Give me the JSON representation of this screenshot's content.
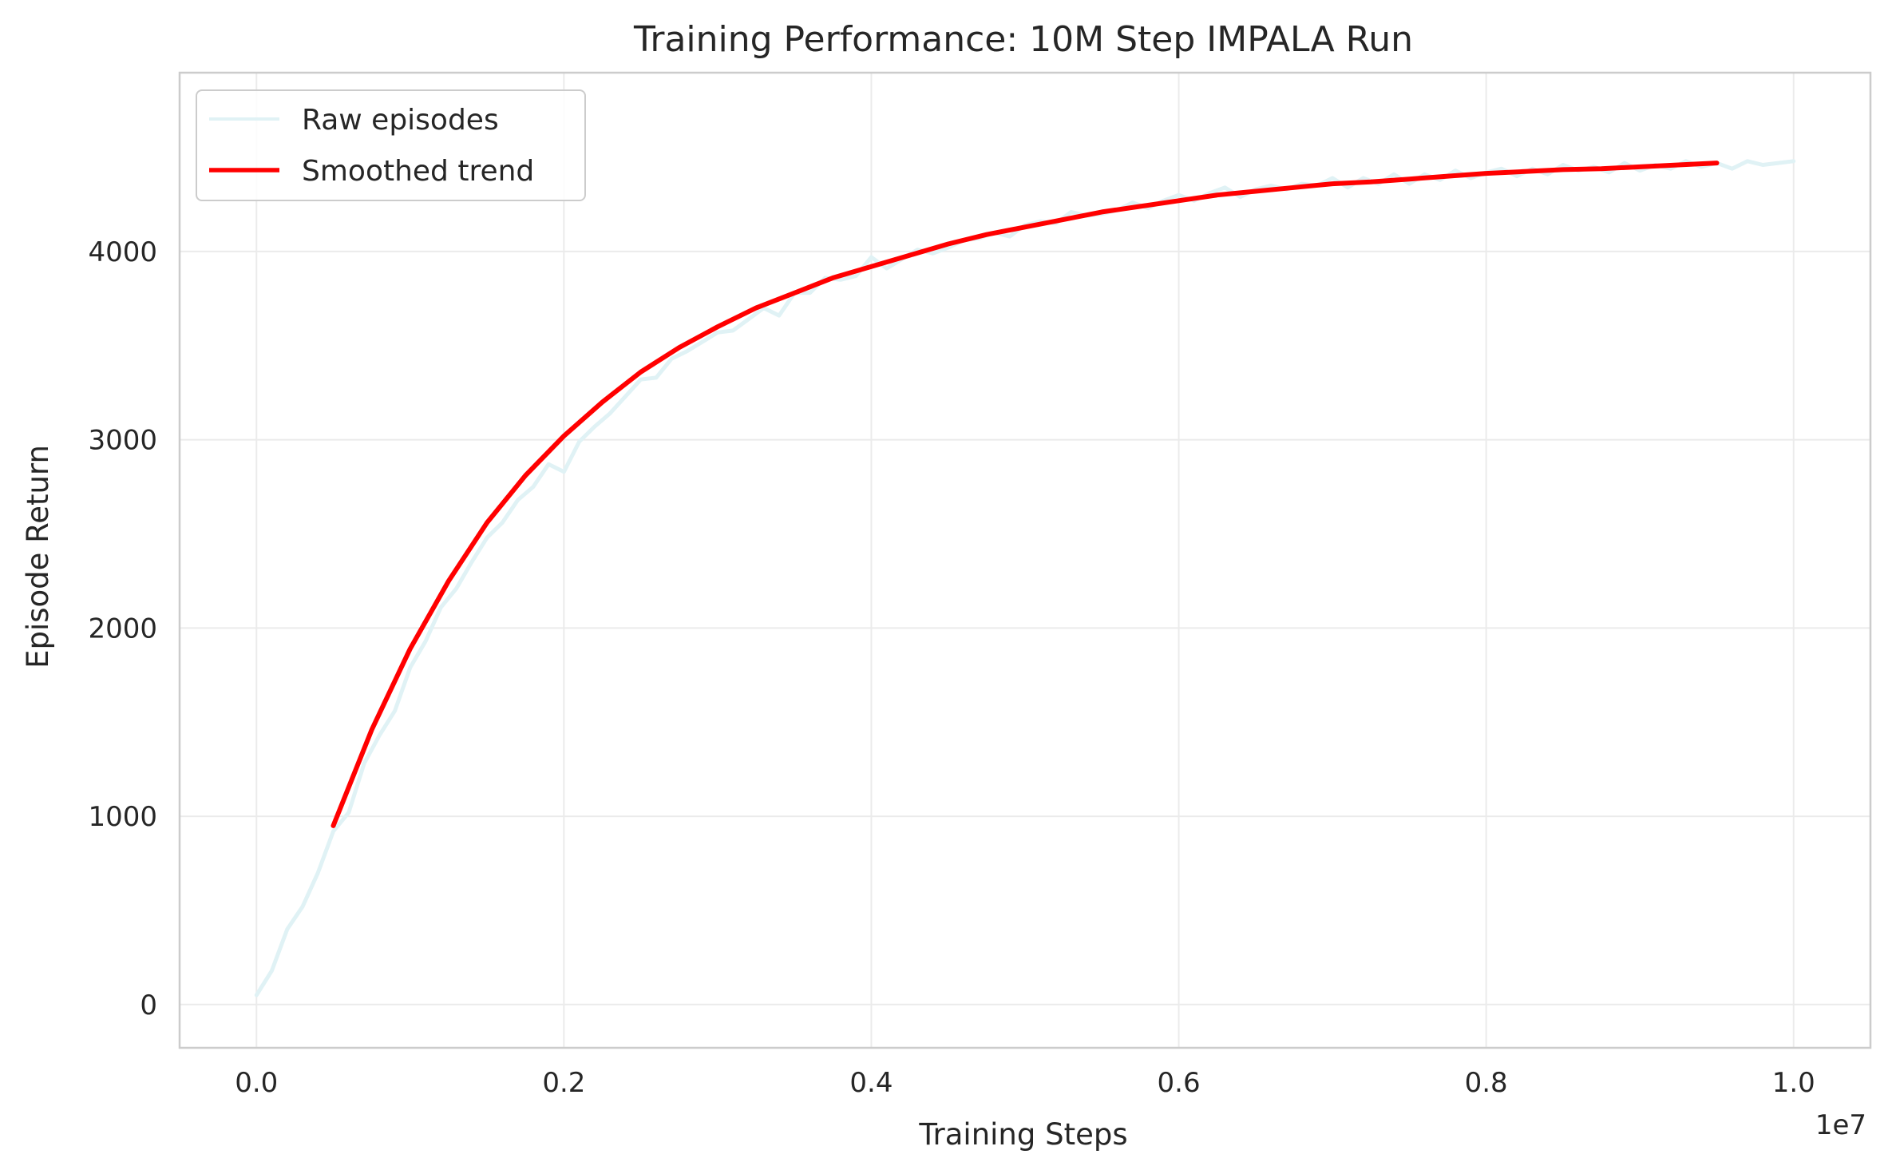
{
  "chart_data": {
    "type": "line",
    "title": "Training Performance: 10M Step IMPALA Run",
    "xlabel": "Training Steps",
    "ylabel": "Episode Return",
    "x_offset_label": "1e7",
    "xlim": [
      -0.05,
      1.05
    ],
    "ylim": [
      -230,
      4950
    ],
    "x_ticks": [
      0.0,
      0.2,
      0.4,
      0.6,
      0.8,
      1.0
    ],
    "x_tick_labels": [
      "0.0",
      "0.2",
      "0.4",
      "0.6",
      "0.8",
      "1.0"
    ],
    "y_ticks": [
      0,
      1000,
      2000,
      3000,
      4000
    ],
    "y_tick_labels": [
      "0",
      "1000",
      "2000",
      "3000",
      "4000"
    ],
    "grid": true,
    "legend_position": "upper-left",
    "series": [
      {
        "name": "Raw episodes",
        "color": "#e0f2f5",
        "x": [
          0.0,
          0.01,
          0.02,
          0.03,
          0.04,
          0.05,
          0.06,
          0.07,
          0.08,
          0.09,
          0.1,
          0.11,
          0.12,
          0.13,
          0.14,
          0.15,
          0.16,
          0.17,
          0.18,
          0.19,
          0.2,
          0.21,
          0.22,
          0.23,
          0.24,
          0.25,
          0.26,
          0.27,
          0.28,
          0.29,
          0.3,
          0.31,
          0.32,
          0.33,
          0.34,
          0.35,
          0.36,
          0.37,
          0.38,
          0.39,
          0.4,
          0.41,
          0.42,
          0.43,
          0.44,
          0.45,
          0.46,
          0.47,
          0.48,
          0.49,
          0.5,
          0.51,
          0.52,
          0.53,
          0.54,
          0.55,
          0.56,
          0.57,
          0.58,
          0.59,
          0.6,
          0.61,
          0.62,
          0.63,
          0.64,
          0.65,
          0.66,
          0.67,
          0.68,
          0.69,
          0.7,
          0.71,
          0.72,
          0.73,
          0.74,
          0.75,
          0.76,
          0.77,
          0.78,
          0.79,
          0.8,
          0.81,
          0.82,
          0.83,
          0.84,
          0.85,
          0.86,
          0.87,
          0.88,
          0.89,
          0.9,
          0.91,
          0.92,
          0.93,
          0.94,
          0.95,
          0.96,
          0.97,
          0.98,
          0.99,
          1.0
        ],
        "values": [
          50,
          180,
          400,
          520,
          700,
          920,
          1020,
          1280,
          1430,
          1560,
          1790,
          1930,
          2110,
          2210,
          2350,
          2480,
          2560,
          2680,
          2750,
          2870,
          2830,
          2990,
          3070,
          3140,
          3230,
          3320,
          3330,
          3430,
          3470,
          3520,
          3570,
          3580,
          3640,
          3700,
          3660,
          3780,
          3780,
          3860,
          3850,
          3870,
          3970,
          3910,
          3960,
          4010,
          3990,
          4020,
          4060,
          4070,
          4100,
          4080,
          4140,
          4160,
          4150,
          4210,
          4190,
          4200,
          4220,
          4260,
          4230,
          4270,
          4300,
          4270,
          4310,
          4340,
          4290,
          4330,
          4350,
          4330,
          4360,
          4350,
          4390,
          4340,
          4390,
          4360,
          4410,
          4360,
          4410,
          4380,
          4430,
          4390,
          4420,
          4440,
          4400,
          4440,
          4410,
          4460,
          4430,
          4450,
          4420,
          4470,
          4430,
          4460,
          4440,
          4480,
          4450,
          4470,
          4440,
          4480,
          4460,
          4470,
          4480
        ]
      },
      {
        "name": "Smoothed trend",
        "color": "#ff0000",
        "x": [
          0.05,
          0.075,
          0.1,
          0.125,
          0.15,
          0.175,
          0.2,
          0.225,
          0.25,
          0.275,
          0.3,
          0.325,
          0.35,
          0.375,
          0.4,
          0.425,
          0.45,
          0.475,
          0.5,
          0.525,
          0.55,
          0.575,
          0.6,
          0.625,
          0.65,
          0.675,
          0.7,
          0.725,
          0.75,
          0.775,
          0.8,
          0.825,
          0.85,
          0.875,
          0.9,
          0.925,
          0.95
        ],
        "values": [
          950,
          1460,
          1890,
          2250,
          2560,
          2810,
          3020,
          3200,
          3360,
          3490,
          3600,
          3700,
          3780,
          3860,
          3920,
          3980,
          4040,
          4090,
          4130,
          4170,
          4210,
          4240,
          4270,
          4300,
          4320,
          4340,
          4360,
          4370,
          4385,
          4400,
          4415,
          4425,
          4435,
          4440,
          4450,
          4460,
          4470
        ]
      }
    ]
  }
}
